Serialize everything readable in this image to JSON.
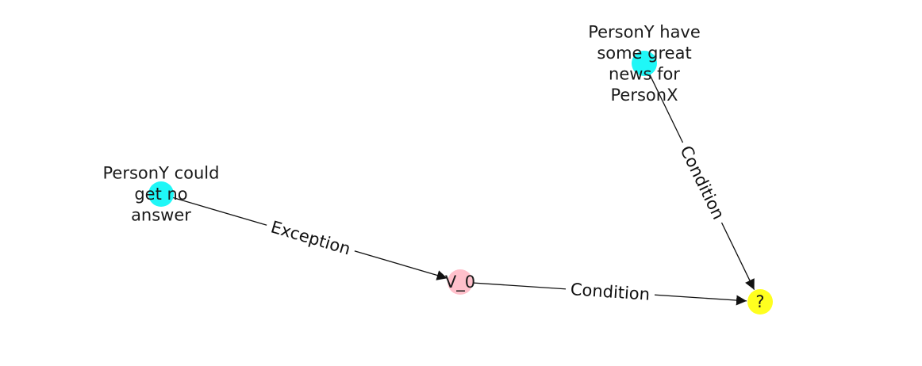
{
  "graph": {
    "nodes": [
      {
        "id": "n_great_news",
        "label_lines": [
          "PersonY have",
          "some great",
          "news for",
          "PersonX"
        ],
        "color": "#1ff7f7"
      },
      {
        "id": "n_no_answer",
        "label_lines": [
          "PersonY could",
          "get no",
          "answer"
        ],
        "color": "#1ff7f7"
      },
      {
        "id": "n_v0",
        "label_lines": [
          "V_0"
        ],
        "color": "#ffc0cb"
      },
      {
        "id": "n_question",
        "label_lines": [
          "?"
        ],
        "color": "#ffff1f"
      }
    ],
    "edges": [
      {
        "id": "e_exception",
        "from": "n_no_answer",
        "to": "n_v0",
        "label": "Exception"
      },
      {
        "id": "e_condition_v0",
        "from": "n_v0",
        "to": "n_question",
        "label": "Condition"
      },
      {
        "id": "e_condition_news",
        "from": "n_great_news",
        "to": "n_question",
        "label": "Condition"
      }
    ]
  }
}
